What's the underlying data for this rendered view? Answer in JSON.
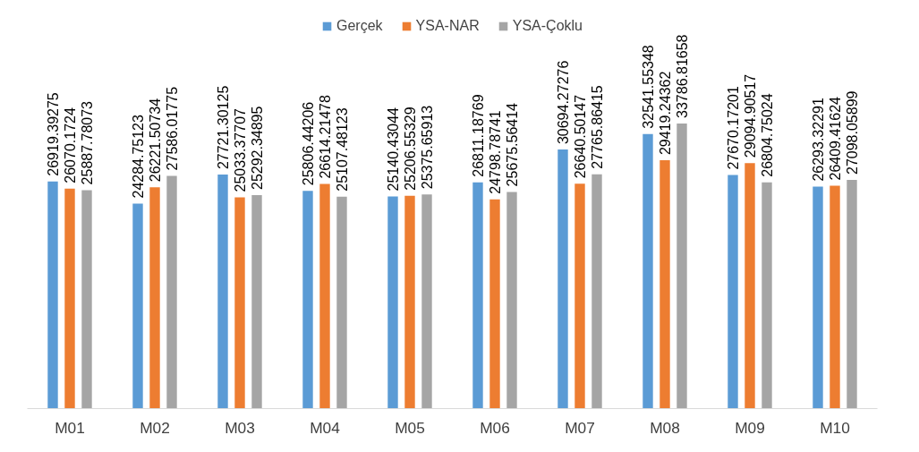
{
  "chart_data": {
    "type": "bar",
    "categories": [
      "M01",
      "M02",
      "M03",
      "M04",
      "M05",
      "M06",
      "M07",
      "M08",
      "M09",
      "M10"
    ],
    "series": [
      {
        "name": "Gerçek",
        "color": "#5b9bd5",
        "values": [
          26919.39275,
          24284.75123,
          27721.30125,
          25806.44206,
          25140.43044,
          26811.18769,
          30694.27276,
          32541.55348,
          27670.17201,
          26293.32291
        ]
      },
      {
        "name": "YSA-NAR",
        "color": "#ed7d31",
        "values": [
          26070.1724,
          26221.50734,
          25033.37707,
          26614.21478,
          25206.55329,
          24798.78741,
          26640.50147,
          29419.24362,
          29094.90517,
          26409.41624
        ]
      },
      {
        "name": "YSA-Çoklu",
        "color": "#a5a5a5",
        "values": [
          25887.78073,
          27586.01775,
          25292.34895,
          25107.48123,
          25375.65913,
          25675.56414,
          27765.86415,
          33786.81658,
          26804.75024,
          27098.05899
        ]
      }
    ],
    "data_labels": true,
    "legend": "top",
    "grid": false,
    "tick_labels": "x"
  }
}
